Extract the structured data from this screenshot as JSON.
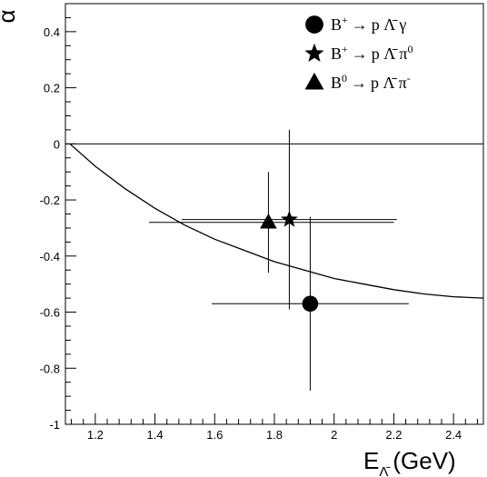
{
  "chart_data": {
    "type": "scatter",
    "xlabel": "E",
    "xlabel_sub": "Λ̄",
    "xlabel_unit": "(GeV)",
    "ylabel": "ᾱ",
    "xlim": [
      1.1,
      2.5
    ],
    "ylim": [
      -1.0,
      0.5
    ],
    "x_ticks": [
      1.2,
      1.4,
      1.6,
      1.8,
      2.0,
      2.2,
      2.4
    ],
    "x_tick_labels": [
      "1.2",
      "1.4",
      "1.6",
      "1.8",
      "2",
      "2.2",
      "2.4"
    ],
    "y_ticks": [
      0.4,
      0.2,
      0.0,
      -0.2,
      -0.4,
      -0.6,
      -0.8,
      -1.0
    ],
    "y_tick_labels": [
      "0.4",
      "0.2",
      "0",
      "-0.2",
      "-0.4",
      "-0.6",
      "-0.8",
      "-1"
    ],
    "zero_line": 0,
    "series": [
      {
        "name": "B⁺ → p Λ̄ γ",
        "legend_parts": {
          "parent": "B",
          "charge": "+",
          "arrow": "→",
          "products": "p Λ̄ γ",
          "sup": ""
        },
        "marker": "circle",
        "points": [
          {
            "x": 1.92,
            "y": -0.57,
            "x_lo": 1.59,
            "x_hi": 2.25,
            "y_lo": -0.88,
            "y_hi": -0.26
          }
        ]
      },
      {
        "name": "B⁺ → p Λ̄ π⁰",
        "legend_parts": {
          "parent": "B",
          "charge": "+",
          "arrow": "→",
          "products": "p Λ̄ π",
          "sup": "0"
        },
        "marker": "star",
        "points": [
          {
            "x": 1.85,
            "y": -0.27,
            "x_lo": 1.49,
            "x_hi": 2.21,
            "y_lo": -0.59,
            "y_hi": 0.05
          }
        ]
      },
      {
        "name": "B⁰ → p Λ̄ π⁻",
        "legend_parts": {
          "parent": "B",
          "charge": "0",
          "arrow": "→",
          "products": "p Λ̄ π",
          "sup": "-"
        },
        "marker": "triangle",
        "points": [
          {
            "x": 1.78,
            "y": -0.28,
            "x_lo": 1.38,
            "x_hi": 2.2,
            "y_lo": -0.46,
            "y_hi": -0.1
          }
        ]
      }
    ],
    "curve": {
      "type": "line",
      "points": [
        [
          1.115,
          0.0
        ],
        [
          1.2,
          -0.08
        ],
        [
          1.3,
          -0.16
        ],
        [
          1.4,
          -0.23
        ],
        [
          1.5,
          -0.29
        ],
        [
          1.6,
          -0.34
        ],
        [
          1.7,
          -0.38
        ],
        [
          1.8,
          -0.42
        ],
        [
          1.9,
          -0.45
        ],
        [
          2.0,
          -0.48
        ],
        [
          2.1,
          -0.5
        ],
        [
          2.2,
          -0.52
        ],
        [
          2.3,
          -0.535
        ],
        [
          2.4,
          -0.545
        ],
        [
          2.5,
          -0.55
        ]
      ]
    },
    "legend_position": "top-right",
    "grid": false
  }
}
